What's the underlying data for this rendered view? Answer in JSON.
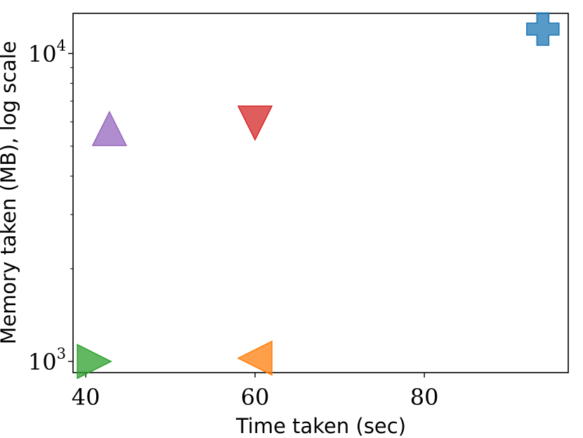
{
  "chart_data": {
    "type": "scatter",
    "title": "",
    "xlabel": "Time taken (sec)",
    "ylabel": "Memory taken (MB), log scale",
    "x_ticks": [
      {
        "value": 40,
        "label": "40"
      },
      {
        "value": 60,
        "label": "60"
      },
      {
        "value": 80,
        "label": "80"
      }
    ],
    "y_ticks": [
      {
        "value": 1000,
        "base": "10",
        "exp": "3"
      },
      {
        "value": 10000,
        "base": "10",
        "exp": "4"
      }
    ],
    "xlim": [
      38.5,
      97
    ],
    "ylim": [
      920,
      13500
    ],
    "yscale": "log",
    "grid": false,
    "legend": "none",
    "points": [
      {
        "x": 94,
        "y": 12000,
        "marker": "plus",
        "color": "#1f77b4"
      },
      {
        "x": 42.8,
        "y": 5700,
        "marker": "triangle-up",
        "color": "#9467bd"
      },
      {
        "x": 60,
        "y": 5950,
        "marker": "triangle-down",
        "color": "#d62728"
      },
      {
        "x": 41,
        "y": 1000,
        "marker": "triangle-right",
        "color": "#2ca02c"
      },
      {
        "x": 60,
        "y": 1025,
        "marker": "triangle-left",
        "color": "#ff7f0e"
      }
    ]
  }
}
